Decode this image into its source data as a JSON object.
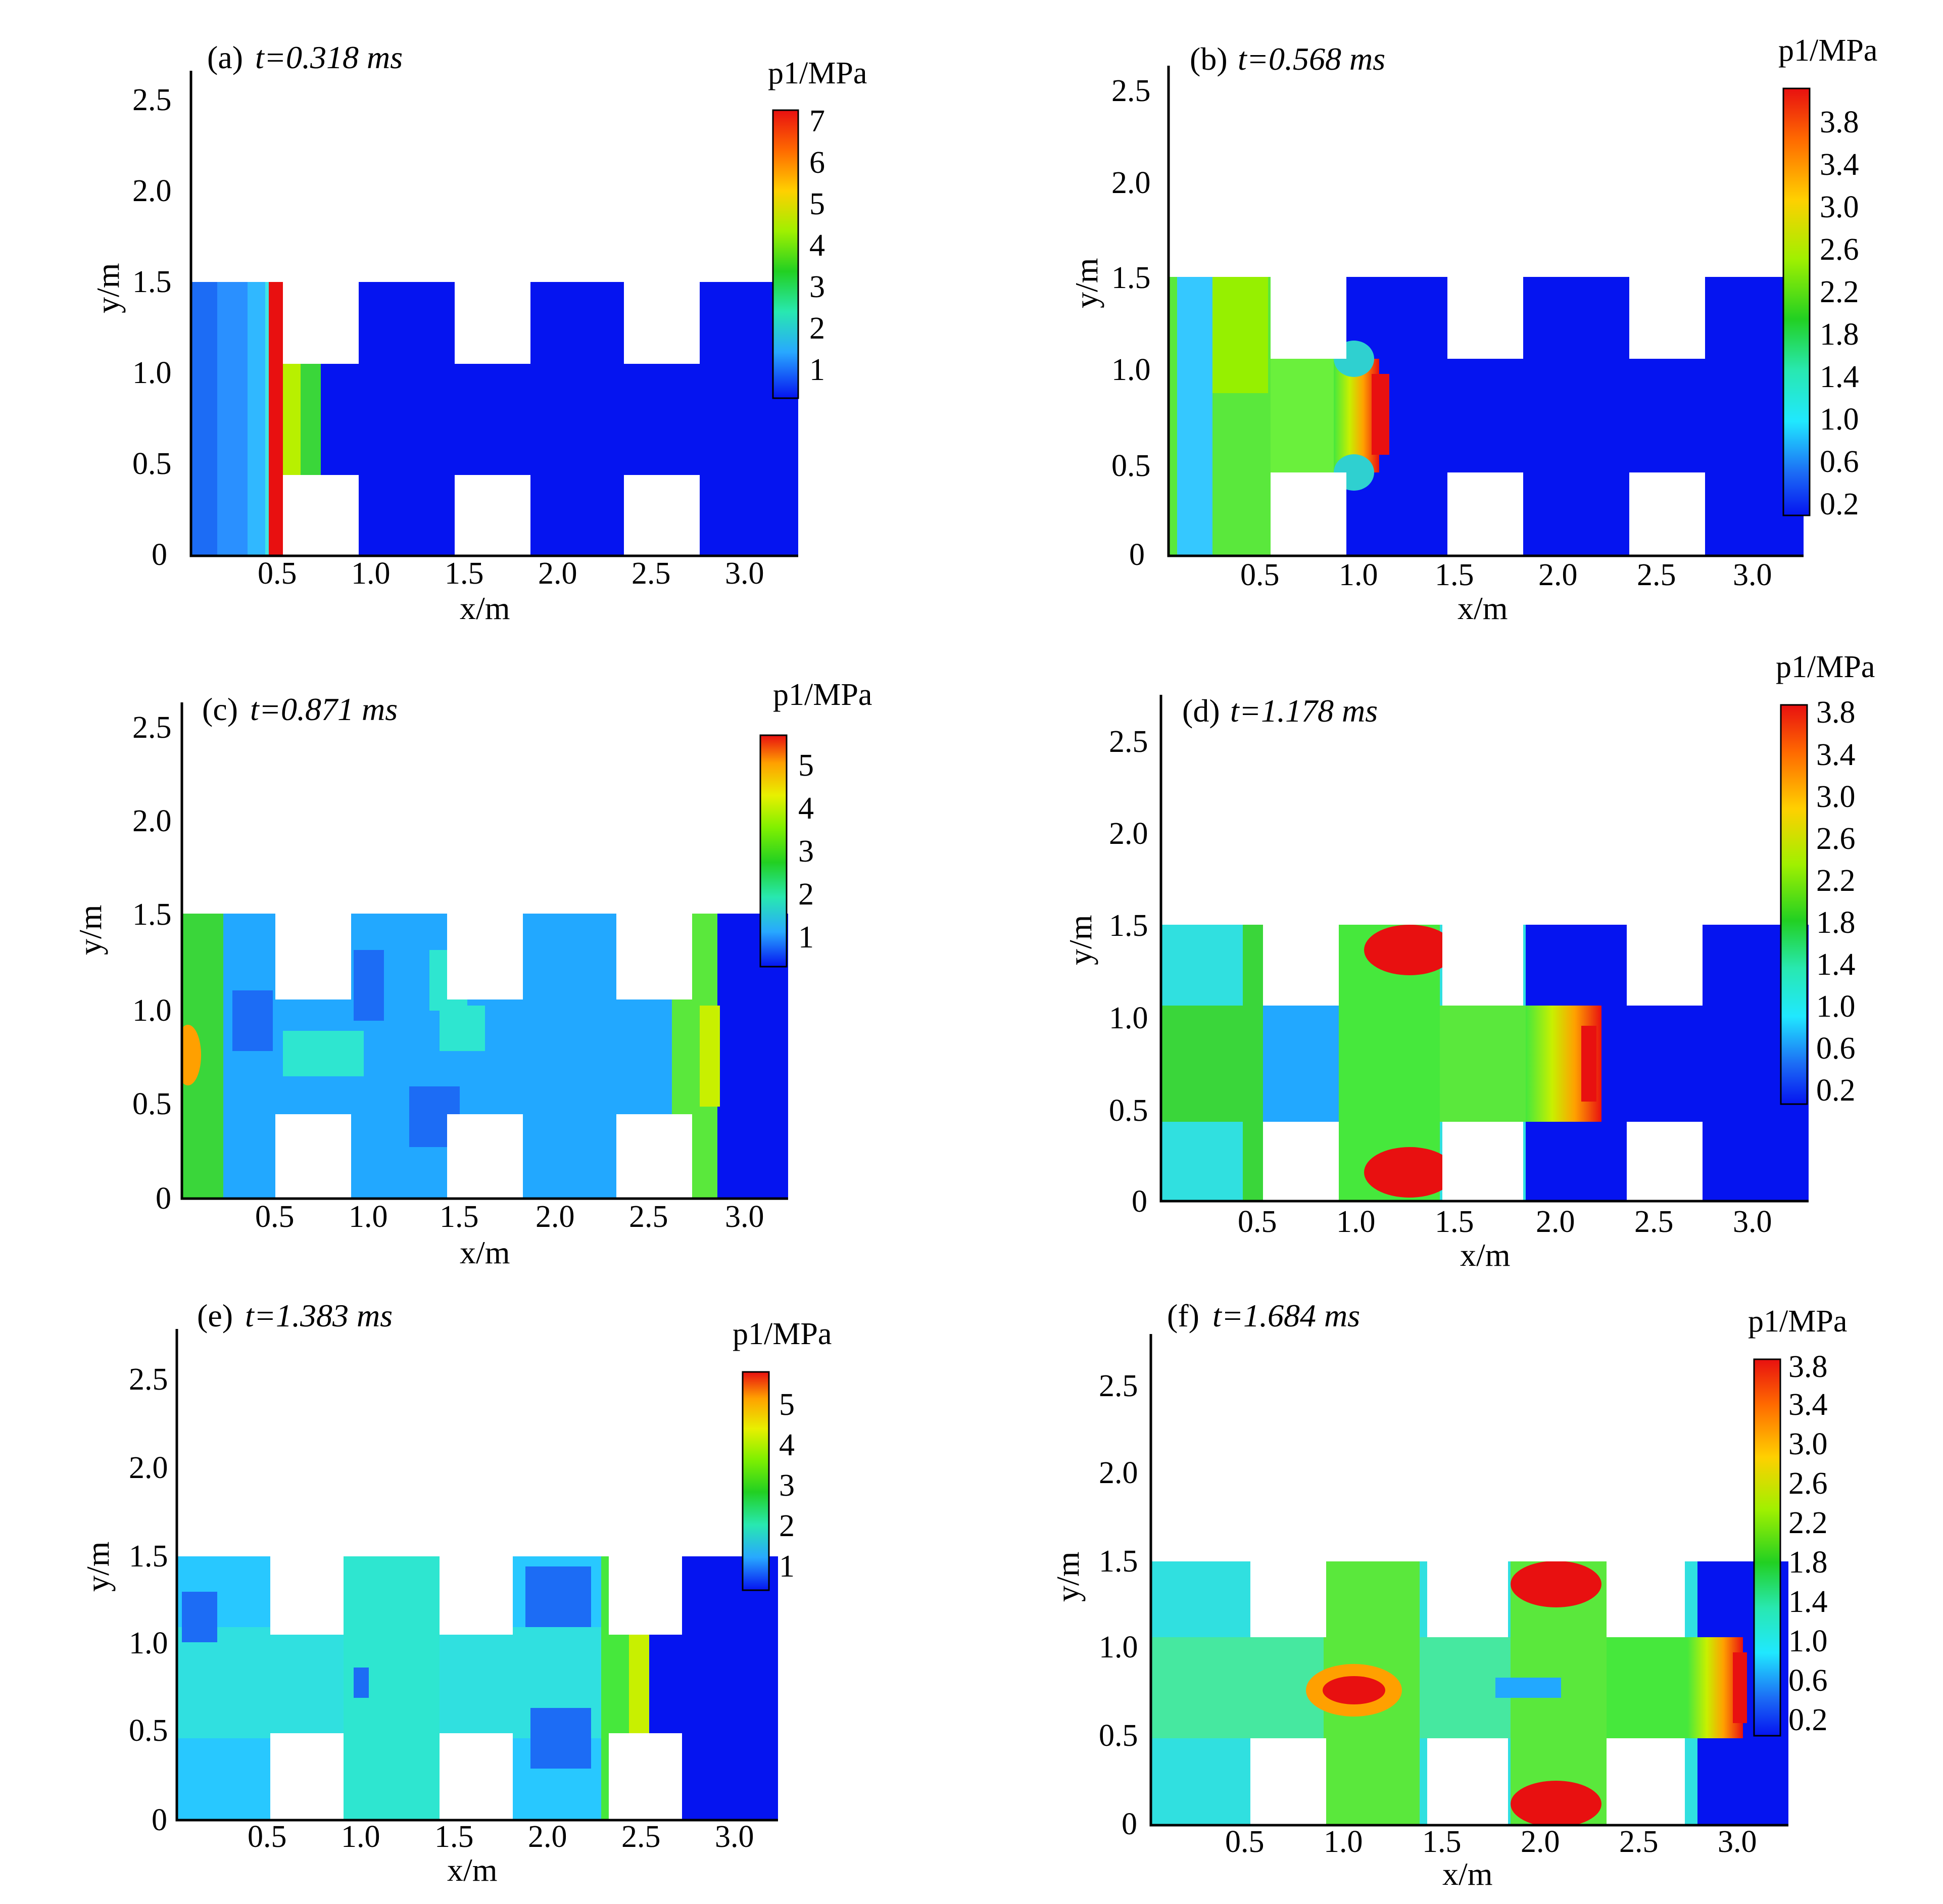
{
  "figure": {
    "units": "p1/MPa"
  },
  "panels": [
    {
      "letter": "(a)",
      "time": "t=0.318 ms",
      "legend_title": "p1/MPa",
      "legend_ticks": [
        "7",
        "6",
        "5",
        "4",
        "3",
        "2",
        "1"
      ],
      "xlabel": "x/m",
      "ylabel": "y/m",
      "xticks": [
        "0.5",
        "1.0",
        "1.5",
        "2.0",
        "2.5",
        "3.0"
      ],
      "yticks": [
        "0",
        "0.5",
        "1.0",
        "1.5",
        "2.0",
        "2.5"
      ]
    },
    {
      "letter": "(b)",
      "time": "t=0.568 ms",
      "legend_title": "p1/MPa",
      "legend_ticks": [
        "3.8",
        "3.4",
        "3.0",
        "2.6",
        "2.2",
        "1.8",
        "1.4",
        "1.0",
        "0.6",
        "0.2"
      ],
      "xlabel": "x/m",
      "ylabel": "y/m",
      "xticks": [
        "0.5",
        "1.0",
        "1.5",
        "2.0",
        "2.5",
        "3.0"
      ],
      "yticks": [
        "0",
        "0.5",
        "1.0",
        "1.5",
        "2.0",
        "2.5"
      ]
    },
    {
      "letter": "(c)",
      "time": "t=0.871 ms",
      "legend_title": "p1/MPa",
      "legend_ticks": [
        "5",
        "4",
        "3",
        "2",
        "1"
      ],
      "xlabel": "x/m",
      "ylabel": "y/m",
      "xticks": [
        "0.5",
        "1.0",
        "1.5",
        "2.0",
        "2.5",
        "3.0"
      ],
      "yticks": [
        "0",
        "0.5",
        "1.0",
        "1.5",
        "2.0",
        "2.5"
      ]
    },
    {
      "letter": "(d)",
      "time": "t=1.178 ms",
      "legend_title": "p1/MPa",
      "legend_ticks": [
        "3.8",
        "3.4",
        "3.0",
        "2.6",
        "2.2",
        "1.8",
        "1.4",
        "1.0",
        "0.6",
        "0.2"
      ],
      "xlabel": "x/m",
      "ylabel": "y/m",
      "xticks": [
        "0.5",
        "1.0",
        "1.5",
        "2.0",
        "2.5",
        "3.0"
      ],
      "yticks": [
        "0",
        "0.5",
        "1.0",
        "1.5",
        "2.0",
        "2.5"
      ]
    },
    {
      "letter": "(e)",
      "time": "t=1.383 ms",
      "legend_title": "p1/MPa",
      "legend_ticks": [
        "5",
        "4",
        "3",
        "2",
        "1"
      ],
      "xlabel": "x/m",
      "ylabel": "y/m",
      "xticks": [
        "0.5",
        "1.0",
        "1.5",
        "2.0",
        "2.5",
        "3.0"
      ],
      "yticks": [
        "0",
        "0.5",
        "1.0",
        "1.5",
        "2.0",
        "2.5"
      ]
    },
    {
      "letter": "(f)",
      "time": "t=1.684 ms",
      "legend_title": "p1/MPa",
      "legend_ticks": [
        "3.8",
        "3.4",
        "3.0",
        "2.6",
        "2.2",
        "1.8",
        "1.4",
        "1.0",
        "0.6",
        "0.2"
      ],
      "xlabel": "x/m",
      "ylabel": "y/m",
      "xticks": [
        "0.5",
        "1.0",
        "1.5",
        "2.0",
        "2.5",
        "3.0"
      ],
      "yticks": [
        "0",
        "0.5",
        "1.0",
        "1.5",
        "2.0",
        "2.5"
      ]
    }
  ],
  "chart_data": [
    {
      "type": "heatmap",
      "title": "(a) t=0.318 ms",
      "xlabel": "x/m",
      "ylabel": "y/m",
      "xlim": [
        0,
        3.2
      ],
      "ylim": [
        0,
        2.6
      ],
      "colorbar": {
        "label": "p1/MPa",
        "min": 0,
        "max": 7.4,
        "ticks": [
          1,
          2,
          3,
          4,
          5,
          6,
          7
        ]
      },
      "domain": "pipe 0.45<=y<=1.05 over full x; chambers at x 0-0.5, 0.9-1.4, 1.8-2.3, 2.7-3.2 spanning 0<=y<=1.5",
      "background_pressure": 0.1,
      "features": [
        {
          "region": "x 0-0.5 chamber",
          "pressure": 1.5,
          "note": "decreasing toward left wall, ~1.8 near x=0.45"
        },
        {
          "region": "x 0.43-0.5, full height",
          "pressure": 7.0,
          "note": "shock front in first chamber"
        },
        {
          "region": "x 0.5-0.7 pipe",
          "pressure": 3.0,
          "note": "shock entering pipe, edge ~5"
        }
      ]
    },
    {
      "type": "heatmap",
      "title": "(b) t=0.568 ms",
      "xlabel": "x/m",
      "ylabel": "y/m",
      "xlim": [
        0,
        3.2
      ],
      "ylim": [
        0,
        2.6
      ],
      "colorbar": {
        "label": "p1/MPa",
        "min": 0.0,
        "max": 4.0,
        "ticks": [
          0.2,
          0.6,
          1.0,
          1.4,
          1.8,
          2.2,
          2.6,
          3.0,
          3.4,
          3.8
        ]
      },
      "background_pressure": 0.1,
      "features": [
        {
          "region": "x 0-0.5 chamber",
          "pressure": 2.3,
          "note": "low-pressure wedge ~0.6 at left middle"
        },
        {
          "region": "x 0.5-0.9 pipe",
          "pressure": 2.4
        },
        {
          "region": "x 0.9-1.15 pipe front",
          "pressure": 3.8,
          "note": "curved shock front"
        }
      ]
    },
    {
      "type": "heatmap",
      "title": "(c) t=0.871 ms",
      "xlabel": "x/m",
      "ylabel": "y/m",
      "xlim": [
        0,
        3.2
      ],
      "ylim": [
        0,
        2.6
      ],
      "colorbar": {
        "label": "p1/MPa",
        "min": 0,
        "max": 5.5,
        "ticks": [
          1,
          2,
          3,
          4,
          5
        ]
      },
      "background_pressure": 0.1,
      "features": [
        {
          "region": "x 0-0.25",
          "pressure": 3.0,
          "note": "peak ~4 at left wall centre"
        },
        {
          "region": "x 0.25-1.4",
          "pressure": 1.3
        },
        {
          "region": "x 1.35-1.65 front",
          "pressure": 3.5,
          "note": "shock front entering third pipe section"
        }
      ]
    },
    {
      "type": "heatmap",
      "title": "(d) t=1.178 ms",
      "xlabel": "x/m",
      "ylabel": "y/m",
      "xlim": [
        0,
        3.2
      ],
      "ylim": [
        0,
        2.7
      ],
      "colorbar": {
        "label": "p1/MPa",
        "min": 0.0,
        "max": 4.0,
        "ticks": [
          0.2,
          0.6,
          1.0,
          1.4,
          1.8,
          2.2,
          2.6,
          3.0,
          3.4,
          3.8
        ]
      },
      "background_pressure": 0.1,
      "features": [
        {
          "region": "x 0-0.45",
          "pressure": 1.8
        },
        {
          "region": "x 0.9-1.4 chamber corners",
          "pressure": 3.6,
          "note": "reflected shocks at top and bottom"
        },
        {
          "region": "x 1.8-2.1 front",
          "pressure": 3.8,
          "note": "curved shock front"
        }
      ]
    },
    {
      "type": "heatmap",
      "title": "(e) t=1.383 ms",
      "xlabel": "x/m",
      "ylabel": "y/m",
      "xlim": [
        0,
        3.2
      ],
      "ylim": [
        0,
        2.8
      ],
      "colorbar": {
        "label": "p1/MPa",
        "min": 0,
        "max": 5.5,
        "ticks": [
          1,
          2,
          3,
          4,
          5
        ]
      },
      "background_pressure": 0.1,
      "features": [
        {
          "region": "x 0-2.3",
          "pressure": 1.5,
          "note": "mostly cyan/blue with green at x~1.0"
        },
        {
          "region": "x 2.25-2.5 front",
          "pressure": 3.5,
          "note": "curved shock front"
        }
      ]
    },
    {
      "type": "heatmap",
      "title": "(f) t=1.684 ms",
      "xlabel": "x/m",
      "ylabel": "y/m",
      "xlim": [
        0,
        3.2
      ],
      "ylim": [
        0,
        2.8
      ],
      "colorbar": {
        "label": "p1/MPa",
        "min": 0.0,
        "max": 4.0,
        "ticks": [
          0.2,
          0.6,
          1.0,
          1.4,
          1.8,
          2.2,
          2.6,
          3.0,
          3.4,
          3.8
        ]
      },
      "background_pressure": 0.1,
      "features": [
        {
          "region": "x 0-0.85",
          "pressure": 1.5
        },
        {
          "region": "x 0.85-1.35 centre",
          "pressure": 3.5,
          "note": "converging high pressure core"
        },
        {
          "region": "x 1.8-2.3 chamber corners",
          "pressure": 3.6,
          "note": "reflected shocks top and bottom"
        },
        {
          "region": "x 2.7-3.0 front",
          "pressure": 3.8,
          "note": "curved shock front"
        }
      ]
    }
  ]
}
